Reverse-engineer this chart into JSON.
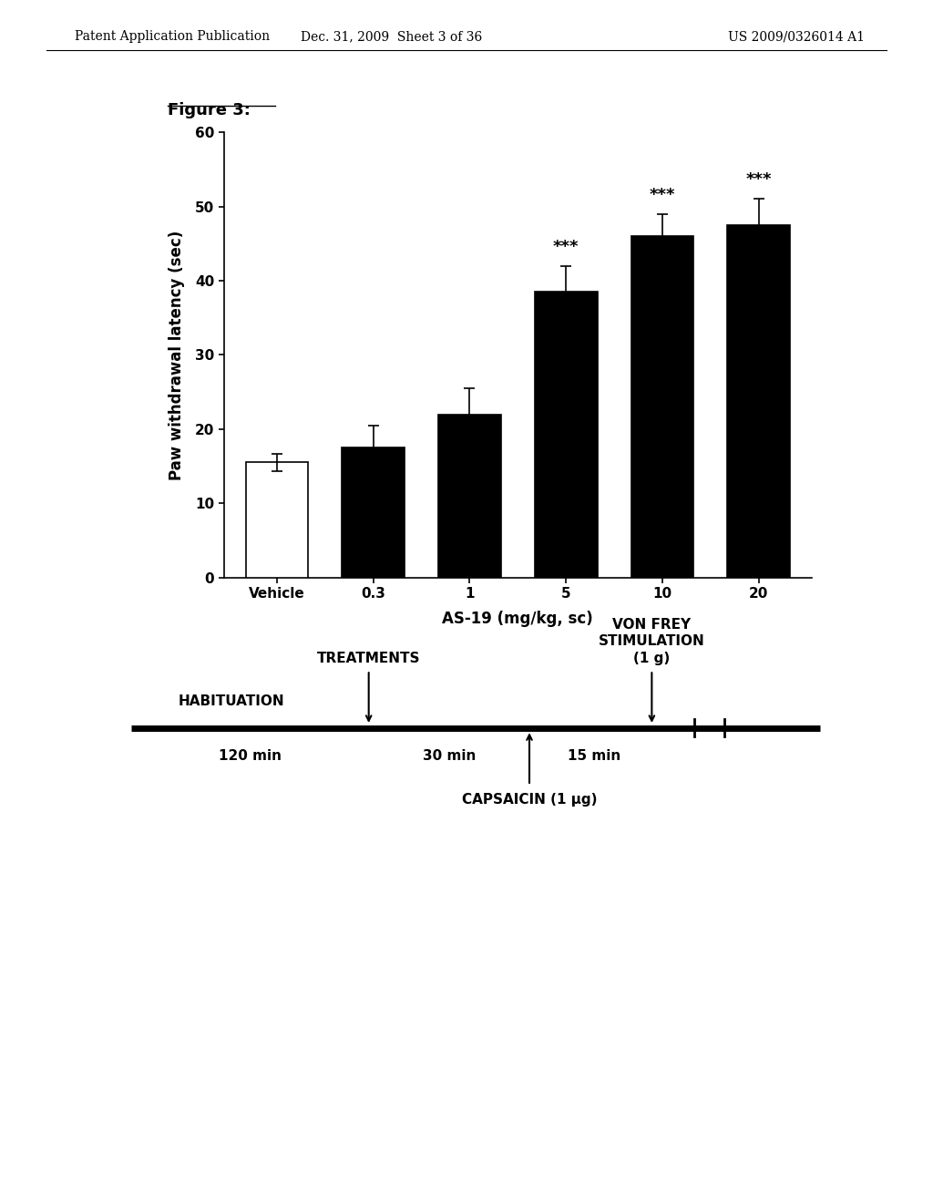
{
  "figure_title": "Figure 3:",
  "header_left": "Patent Application Publication",
  "header_mid": "Dec. 31, 2009  Sheet 3 of 36",
  "header_right": "US 2009/0326014 A1",
  "bar_categories": [
    "Vehicle",
    "0.3",
    "1",
    "5",
    "10",
    "20"
  ],
  "bar_values": [
    15.5,
    17.5,
    22.0,
    38.5,
    46.0,
    47.5
  ],
  "bar_errors": [
    1.2,
    3.0,
    3.5,
    3.5,
    3.0,
    3.5
  ],
  "bar_colors": [
    "#ffffff",
    "#000000",
    "#000000",
    "#000000",
    "#000000",
    "#000000"
  ],
  "bar_edge_color": "#000000",
  "significance": [
    "",
    "",
    "",
    "***",
    "***",
    "***"
  ],
  "ylabel": "Paw withdrawal latency (sec)",
  "xlabel": "AS-19 (mg/kg, sc)",
  "ylim": [
    0,
    60
  ],
  "yticks": [
    0,
    10,
    20,
    30,
    40,
    50,
    60
  ],
  "timeline_habituation_label": "HABITUATION",
  "timeline_treatments_label": "TREATMENTS",
  "timeline_vonfrey_label": "VON FREY\nSTIMULATION\n(1 g)",
  "timeline_capsaicin_label": "CAPSAICIN (1 μg)",
  "timeline_120min": "120 min",
  "timeline_30min": "30 min",
  "timeline_15min": "15 min",
  "fontsize_bar_labels": 11,
  "fontsize_axis_labels": 12,
  "fontsize_significance": 13,
  "fontsize_header": 10,
  "fontsize_figure_title": 13,
  "fontsize_timeline": 11
}
